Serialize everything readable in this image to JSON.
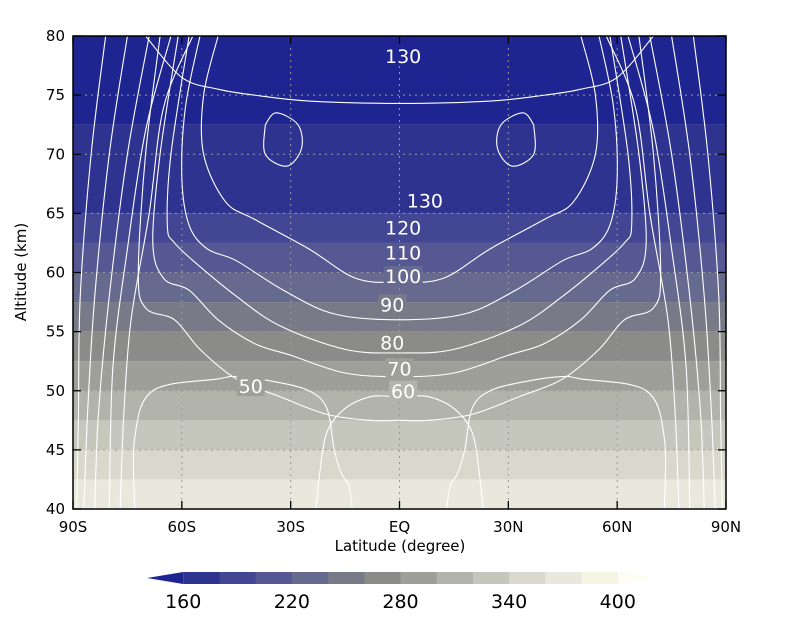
{
  "chart_data": {
    "type": "heatmap",
    "title": "",
    "xlabel": "Latitude (degree)",
    "ylabel": "Altitude (km)",
    "xlim": [
      -90,
      90
    ],
    "ylim": [
      40,
      80
    ],
    "x_ticks": [
      {
        "value": -90,
        "label": "90S"
      },
      {
        "value": -60,
        "label": "60S"
      },
      {
        "value": -30,
        "label": "30S"
      },
      {
        "value": 0,
        "label": "EQ"
      },
      {
        "value": 30,
        "label": "30N"
      },
      {
        "value": 60,
        "label": "60N"
      },
      {
        "value": 90,
        "label": "90N"
      }
    ],
    "y_ticks": [
      {
        "value": 40,
        "label": "40"
      },
      {
        "value": 45,
        "label": "45"
      },
      {
        "value": 50,
        "label": "50"
      },
      {
        "value": 55,
        "label": "55"
      },
      {
        "value": 60,
        "label": "60"
      },
      {
        "value": 65,
        "label": "65"
      },
      {
        "value": 70,
        "label": "70"
      },
      {
        "value": 75,
        "label": "75"
      },
      {
        "value": 80,
        "label": "80"
      }
    ],
    "grid": "dotted",
    "filled_field": {
      "colorbar_ticks": [
        160,
        220,
        280,
        340,
        400
      ],
      "levels": [
        160,
        180,
        200,
        220,
        240,
        260,
        280,
        300,
        320,
        340,
        360,
        380,
        400
      ],
      "colors": [
        "#1e2590",
        "#2f3390",
        "#424693",
        "#555892",
        "#676a8f",
        "#787a87",
        "#8b8c89",
        "#9e9f99",
        "#b2b3aa",
        "#c6c7bc",
        "#d8d8cc",
        "#e8e8dc",
        "#f5f5e4",
        "#fdfdf2"
      ],
      "band_tops_km": [
        {
          "value": 380,
          "top_km": 42.5
        },
        {
          "value": 360,
          "top_km": 45
        },
        {
          "value": 340,
          "top_km": 47.5
        },
        {
          "value": 320,
          "top_km": 50
        },
        {
          "value": 300,
          "top_km": 52.5
        },
        {
          "value": 280,
          "top_km": 55
        },
        {
          "value": 260,
          "top_km": 57.5
        },
        {
          "value": 240,
          "top_km": 60
        },
        {
          "value": 220,
          "top_km": 62.5
        },
        {
          "value": 200,
          "top_km": 65
        },
        {
          "value": 180,
          "top_km": 72.5
        },
        {
          "value": 160,
          "top_km": 80
        }
      ],
      "core_region": {
        "value": 160,
        "lat_range": [
          -52,
          52
        ],
        "alt_range": [
          74,
          80
        ]
      }
    },
    "contour_lines": {
      "color": "#ffffff",
      "labels": [
        {
          "text": "130",
          "lat": 1,
          "alt": 78.3
        },
        {
          "text": "130",
          "lat": 7,
          "alt": 66.1
        },
        {
          "text": "120",
          "lat": 1,
          "alt": 63.8
        },
        {
          "text": "110",
          "lat": 1,
          "alt": 61.7
        },
        {
          "text": "100",
          "lat": 1,
          "alt": 59.7
        },
        {
          "text": "90",
          "lat": -2,
          "alt": 57.3
        },
        {
          "text": "80",
          "lat": -2,
          "alt": 54.1
        },
        {
          "text": "70",
          "lat": 0,
          "alt": 51.9
        },
        {
          "text": "60",
          "lat": 1,
          "alt": 50.0
        },
        {
          "text": "50",
          "lat": -41,
          "alt": 50.4
        }
      ],
      "lines": [
        {
          "points": [
            [
              -57,
              80
            ],
            [
              -65,
              74
            ],
            [
              -69,
              65
            ],
            [
              -74,
              56
            ],
            [
              -76,
              48
            ],
            [
              -77,
              40
            ]
          ]
        },
        {
          "points": [
            [
              -63,
              80
            ],
            [
              -70,
              72
            ],
            [
              -75,
              62
            ],
            [
              -79,
              52
            ],
            [
              -80,
              40
            ]
          ]
        },
        {
          "points": [
            [
              -69,
              80
            ],
            [
              -75,
              70
            ],
            [
              -80,
              58
            ],
            [
              -83,
              48
            ],
            [
              -84,
              40
            ]
          ]
        },
        {
          "points": [
            [
              -75,
              80
            ],
            [
              -80,
              70
            ],
            [
              -84,
              58
            ],
            [
              -86,
              48
            ],
            [
              -87,
              40
            ]
          ]
        },
        {
          "points": [
            [
              -81,
              80
            ],
            [
              -85,
              70
            ],
            [
              -88,
              58
            ],
            [
              -88.5,
              48
            ],
            [
              -89,
              40
            ]
          ]
        },
        {
          "points": [
            [
              57,
              80
            ],
            [
              65,
              74
            ],
            [
              69,
              65
            ],
            [
              74,
              56
            ],
            [
              76,
              48
            ],
            [
              77,
              40
            ]
          ]
        },
        {
          "points": [
            [
              63,
              80
            ],
            [
              70,
              72
            ],
            [
              75,
              62
            ],
            [
              79,
              52
            ],
            [
              80,
              40
            ]
          ]
        },
        {
          "points": [
            [
              69,
              80
            ],
            [
              75,
              70
            ],
            [
              80,
              58
            ],
            [
              83,
              48
            ],
            [
              84,
              40
            ]
          ]
        },
        {
          "points": [
            [
              75,
              80
            ],
            [
              80,
              70
            ],
            [
              84,
              58
            ],
            [
              86,
              48
            ],
            [
              87,
              40
            ]
          ]
        },
        {
          "points": [
            [
              81,
              80
            ],
            [
              85,
              70
            ],
            [
              88,
              58
            ],
            [
              88.5,
              48
            ],
            [
              89,
              40
            ]
          ]
        },
        {
          "points": [
            [
              -50,
              80
            ],
            [
              -54,
              75
            ],
            [
              -54,
              70
            ],
            [
              -48,
              66
            ],
            [
              -40,
              64.5
            ],
            [
              -25,
              62
            ],
            [
              -12,
              59.5
            ],
            [
              0,
              59.2
            ],
            [
              12,
              59.5
            ],
            [
              25,
              62
            ],
            [
              40,
              64.5
            ],
            [
              48,
              66
            ],
            [
              54,
              70
            ],
            [
              54,
              75
            ],
            [
              50,
              80
            ]
          ]
        },
        {
          "points": [
            [
              -55,
              80
            ],
            [
              -59,
              74
            ],
            [
              -60,
              68
            ],
            [
              -58,
              64
            ],
            [
              -53,
              62
            ],
            [
              -45,
              61
            ],
            [
              -32,
              58.5
            ],
            [
              -18,
              56.5
            ],
            [
              0,
              56.0
            ],
            [
              18,
              56.5
            ],
            [
              32,
              58.5
            ],
            [
              45,
              61
            ],
            [
              53,
              62
            ],
            [
              58,
              64
            ],
            [
              60,
              68
            ],
            [
              59,
              74
            ],
            [
              55,
              80
            ]
          ]
        },
        {
          "points": [
            [
              -58,
              80
            ],
            [
              -63,
              70
            ],
            [
              -64,
              64
            ],
            [
              -62,
              62.5
            ],
            [
              -55,
              60.5
            ],
            [
              -45,
              58
            ],
            [
              -33,
              55.5
            ],
            [
              -15,
              53.5
            ],
            [
              0,
              53.2
            ],
            [
              15,
              53.5
            ],
            [
              33,
              55.5
            ],
            [
              45,
              58
            ],
            [
              55,
              60.5
            ],
            [
              62,
              62.5
            ],
            [
              64,
              64
            ],
            [
              63,
              70
            ],
            [
              58,
              80
            ]
          ]
        },
        {
          "points": [
            [
              -61,
              80
            ],
            [
              -66,
              70
            ],
            [
              -68,
              62.5
            ],
            [
              -65,
              59.5
            ],
            [
              -58,
              58.5
            ],
            [
              -50,
              56
            ],
            [
              -40,
              54
            ],
            [
              -30,
              53
            ],
            [
              -15,
              51.5
            ],
            [
              0,
              51.2
            ],
            [
              15,
              51.5
            ],
            [
              30,
              53
            ],
            [
              40,
              54
            ],
            [
              50,
              56
            ],
            [
              58,
              58.5
            ],
            [
              65,
              59.5
            ],
            [
              68,
              62.5
            ],
            [
              66,
              70
            ],
            [
              61,
              80
            ]
          ]
        },
        {
          "points": [
            [
              -66,
              80
            ],
            [
              -70,
              70
            ],
            [
              -72,
              60
            ],
            [
              -70,
              57
            ],
            [
              -62,
              56
            ],
            [
              -55,
              53.5
            ],
            [
              -45,
              51
            ],
            [
              -33,
              49.5
            ],
            [
              -20,
              48
            ],
            [
              -8,
              47.5
            ],
            [
              0,
              47.5
            ],
            [
              8,
              47.5
            ],
            [
              20,
              48
            ],
            [
              33,
              49.5
            ],
            [
              45,
              51
            ],
            [
              55,
              53.5
            ],
            [
              62,
              56
            ],
            [
              70,
              57
            ],
            [
              72,
              60
            ],
            [
              70,
              70
            ],
            [
              66,
              80
            ]
          ]
        },
        {
          "points": [
            [
              -37,
              72.5
            ],
            [
              -34,
              73.5
            ],
            [
              -28,
              72.5
            ],
            [
              -27,
              70.5
            ],
            [
              -31,
              69
            ],
            [
              -37,
              70
            ],
            [
              -37,
              72.5
            ]
          ]
        },
        {
          "points": [
            [
              37,
              72.5
            ],
            [
              34,
              73.5
            ],
            [
              28,
              72.5
            ],
            [
              27,
              70.5
            ],
            [
              31,
              69
            ],
            [
              37,
              70
            ],
            [
              37,
              72.5
            ]
          ]
        },
        {
          "points": [
            [
              -73,
              40
            ],
            [
              -73,
              46
            ],
            [
              -68,
              50
            ],
            [
              -50,
              51
            ],
            [
              -45,
              51.2
            ],
            [
              -35,
              50.8
            ],
            [
              -25,
              50
            ],
            [
              -20,
              48.5
            ],
            [
              -18,
              45
            ],
            [
              -16,
              43
            ],
            [
              -14,
              42
            ],
            [
              -13,
              40
            ]
          ]
        },
        {
          "points": [
            [
              73,
              40
            ],
            [
              73,
              46
            ],
            [
              68,
              50
            ],
            [
              50,
              51
            ],
            [
              45,
              51.2
            ],
            [
              35,
              50.8
            ],
            [
              25,
              50
            ],
            [
              20,
              48.5
            ],
            [
              18,
              45
            ],
            [
              16,
              43
            ],
            [
              14,
              42
            ],
            [
              13,
              40
            ]
          ]
        },
        {
          "points": [
            [
              -23,
              40
            ],
            [
              -22,
              43
            ],
            [
              -20,
              46.5
            ],
            [
              -15,
              48.5
            ],
            [
              -8,
              49.5
            ],
            [
              -2,
              49.5
            ]
          ]
        },
        {
          "points": [
            [
              23,
              40
            ],
            [
              22,
              43
            ],
            [
              20,
              46.5
            ],
            [
              15,
              48.5
            ],
            [
              8,
              49.5
            ],
            [
              2,
              49.5
            ]
          ]
        },
        {
          "points": [
            [
              -70,
              80
            ],
            [
              -60,
              76.5
            ],
            [
              -50,
              75.5
            ],
            [
              -40,
              75
            ],
            [
              -25,
              74.5
            ],
            [
              0,
              74.3
            ],
            [
              25,
              74.5
            ],
            [
              40,
              75
            ],
            [
              50,
              75.5
            ],
            [
              60,
              76.5
            ],
            [
              70,
              80
            ]
          ]
        }
      ]
    }
  }
}
